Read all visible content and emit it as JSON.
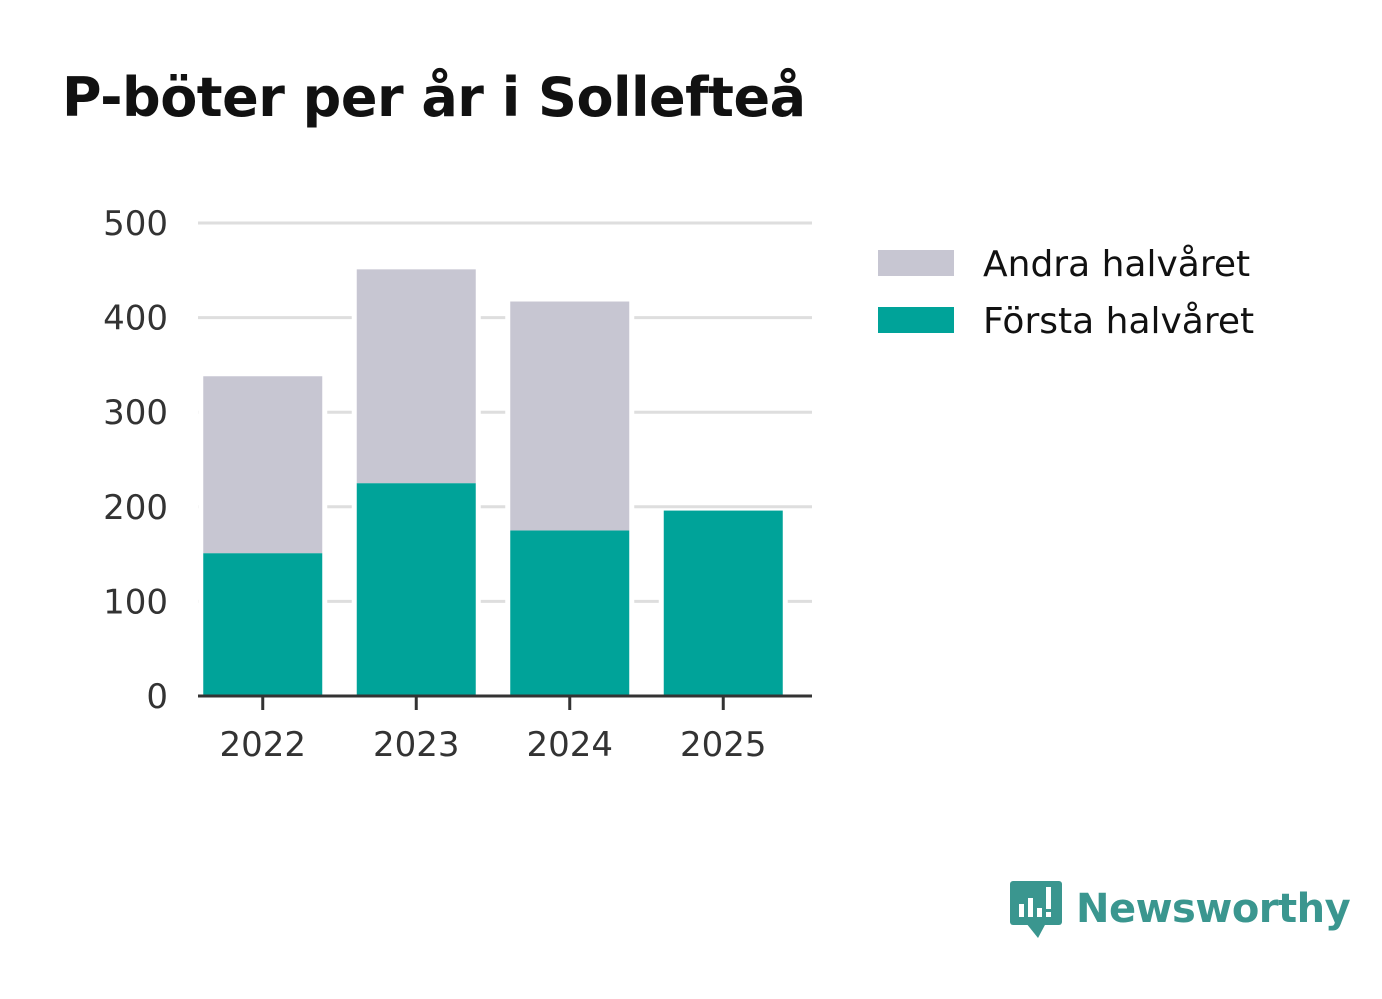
{
  "chart_data": {
    "type": "bar",
    "stacked": true,
    "title": "P-böter per år i Sollefteå",
    "categories": [
      "2022",
      "2023",
      "2024",
      "2025"
    ],
    "series": [
      {
        "name": "Första halvåret",
        "color": "#00a399",
        "values": [
          151,
          225,
          175,
          196
        ]
      },
      {
        "name": "Andra halvåret",
        "color": "#c7c6d2",
        "values": [
          187,
          226,
          242,
          0
        ]
      }
    ],
    "legend_order": [
      "Andra halvåret",
      "Första halvåret"
    ],
    "ylim": [
      0,
      500
    ],
    "yticks": [
      0,
      100,
      200,
      300,
      400,
      500
    ],
    "xlabel": "",
    "ylabel": "",
    "grid": true,
    "legend_position": "right"
  },
  "branding": {
    "name": "Newsworthy",
    "color": "#3a968f"
  }
}
